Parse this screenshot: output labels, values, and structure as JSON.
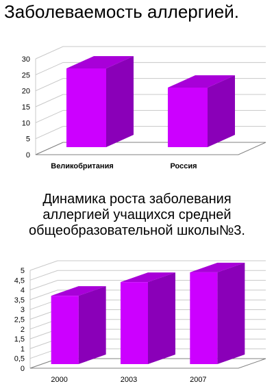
{
  "titles": {
    "chart1": "Заболеваемость аллергией.",
    "chart2": "Динамика роста заболевания\nаллергией учащихся средней\nобщеобразовательной школы№3."
  },
  "colors": {
    "bar_front": "#cc00ff",
    "bar_side": "#8a00b8",
    "bar_top": "#a800d8",
    "floor": "#808080",
    "gridline": "#c8c8c8"
  },
  "chart_data": [
    {
      "type": "bar",
      "title": "Заболеваемость аллергией.",
      "categories": [
        "Великобритания",
        "Россия"
      ],
      "values": [
        27,
        21
      ],
      "ylim": [
        0,
        30
      ],
      "yticks": [
        "0",
        "5",
        "10",
        "15",
        "20",
        "25",
        "30"
      ],
      "category_label_style": "bold",
      "grid": true,
      "legend": "none",
      "style": "3d"
    },
    {
      "type": "bar",
      "title": "Динамика роста заболевания аллергией учащихся средней общеобразовательной школы№3.",
      "categories": [
        "2000",
        "2003",
        "2007"
      ],
      "values": [
        3.7,
        4.4,
        4.9
      ],
      "ylim": [
        0,
        5
      ],
      "yticks": [
        "0",
        "0,5",
        "1",
        "1,5",
        "2",
        "2,5",
        "3",
        "3,5",
        "4",
        "4,5",
        "5"
      ],
      "grid": true,
      "legend": "none",
      "style": "3d"
    }
  ]
}
